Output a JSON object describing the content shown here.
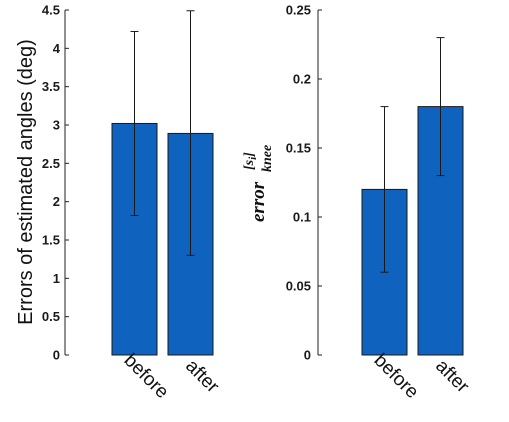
{
  "chart_data": [
    {
      "type": "bar",
      "categories": [
        "before",
        "after"
      ],
      "values": [
        3.02,
        2.89
      ],
      "error_low": [
        1.82,
        1.3
      ],
      "error_high": [
        4.22,
        4.49
      ],
      "ylabel": "Errors of estimated angles (deg)",
      "ylim": [
        0,
        4.5
      ],
      "yticks": [
        0,
        0.5,
        1,
        1.5,
        2,
        2.5,
        3,
        3.5,
        4,
        4.5
      ],
      "ytick_labels": [
        "0",
        "0.5",
        "1",
        "1.5",
        "2",
        "2.5",
        "3",
        "3.5",
        "4",
        "4.5"
      ],
      "grid": false,
      "bar_color": "#0f63be"
    },
    {
      "type": "bar",
      "categories": [
        "before",
        "after"
      ],
      "values": [
        0.12,
        0.18
      ],
      "error_low": [
        0.06,
        0.13
      ],
      "error_high": [
        0.18,
        0.23
      ],
      "ylabel": {
        "main": "error",
        "sub": "knee",
        "sup": "[s",
        "sup_sub": "i",
        "sup_close": "]"
      },
      "ylim": [
        0,
        0.25
      ],
      "yticks": [
        0,
        0.05,
        0.1,
        0.15,
        0.2,
        0.25
      ],
      "ytick_labels": [
        "0",
        "0.05",
        "0.1",
        "0.15",
        "0.2",
        "0.25"
      ],
      "grid": false,
      "bar_color": "#0f63be"
    }
  ]
}
